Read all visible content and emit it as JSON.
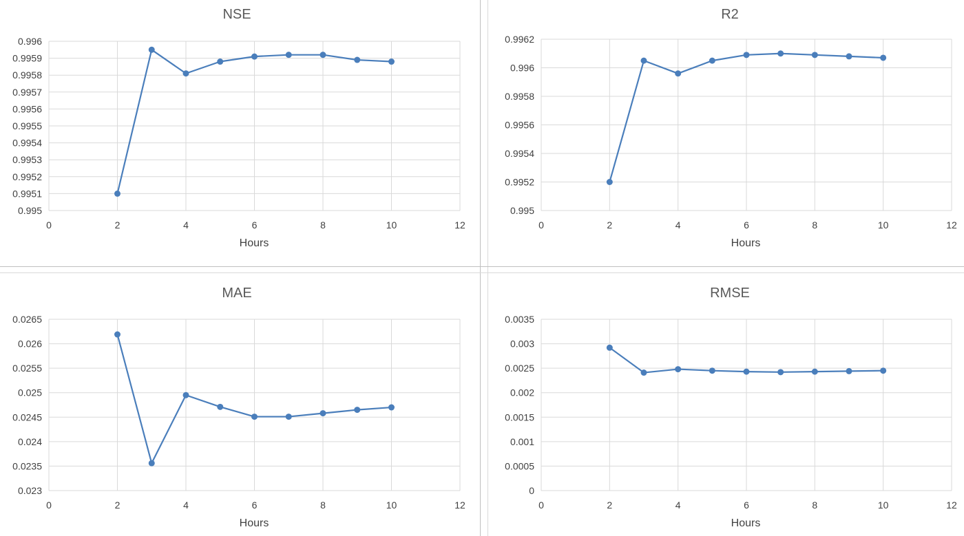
{
  "series_color": "#4a7ebb",
  "grid_color": "#d9d9d9",
  "chart_data": [
    {
      "type": "scatter",
      "title": "NSE",
      "xlabel": "Hours",
      "ylabel": "",
      "xlim": [
        0,
        12
      ],
      "ylim": [
        0.995,
        0.996
      ],
      "xticks": [
        "0",
        "2",
        "4",
        "6",
        "8",
        "10",
        "12"
      ],
      "xtick_values": [
        0,
        2,
        4,
        6,
        8,
        10,
        12
      ],
      "yticks": [
        "0.995",
        "0.9951",
        "0.9952",
        "0.9953",
        "0.9954",
        "0.9955",
        "0.9956",
        "0.9957",
        "0.9958",
        "0.9959",
        "0.996"
      ],
      "ytick_values": [
        0.995,
        0.9951,
        0.9952,
        0.9953,
        0.9954,
        0.9955,
        0.9956,
        0.9957,
        0.9958,
        0.9959,
        0.996
      ],
      "grid": true,
      "series": [
        {
          "x": [
            2,
            3,
            4,
            5,
            6,
            7,
            8,
            9,
            10
          ],
          "y": [
            0.9951,
            0.99595,
            0.99581,
            0.99588,
            0.99591,
            0.99592,
            0.99592,
            0.99589,
            0.99588
          ]
        }
      ]
    },
    {
      "type": "scatter",
      "title": "R2",
      "xlabel": "Hours",
      "ylabel": "",
      "xlim": [
        0,
        12
      ],
      "ylim": [
        0.995,
        0.9962
      ],
      "xticks": [
        "0",
        "2",
        "4",
        "6",
        "8",
        "10",
        "12"
      ],
      "xtick_values": [
        0,
        2,
        4,
        6,
        8,
        10,
        12
      ],
      "yticks": [
        "0.995",
        "0.9952",
        "0.9954",
        "0.9956",
        "0.9958",
        "0.996",
        "0.9962"
      ],
      "ytick_values": [
        0.995,
        0.9952,
        0.9954,
        0.9956,
        0.9958,
        0.996,
        0.9962
      ],
      "grid": true,
      "series": [
        {
          "x": [
            2,
            3,
            4,
            5,
            6,
            7,
            8,
            9,
            10
          ],
          "y": [
            0.9952,
            0.99605,
            0.99596,
            0.99605,
            0.99609,
            0.9961,
            0.99609,
            0.99608,
            0.99607
          ]
        }
      ]
    },
    {
      "type": "scatter",
      "title": "MAE",
      "xlabel": "Hours",
      "ylabel": "",
      "xlim": [
        0,
        12
      ],
      "ylim": [
        0.023,
        0.0265
      ],
      "xticks": [
        "0",
        "2",
        "4",
        "6",
        "8",
        "10",
        "12"
      ],
      "xtick_values": [
        0,
        2,
        4,
        6,
        8,
        10,
        12
      ],
      "yticks": [
        "0.023",
        "0.0235",
        "0.024",
        "0.0245",
        "0.025",
        "0.0255",
        "0.026",
        "0.0265"
      ],
      "ytick_values": [
        0.023,
        0.0235,
        0.024,
        0.0245,
        0.025,
        0.0255,
        0.026,
        0.0265
      ],
      "grid": true,
      "series": [
        {
          "x": [
            2,
            3,
            4,
            5,
            6,
            7,
            8,
            9,
            10
          ],
          "y": [
            0.02619,
            0.02356,
            0.02495,
            0.02471,
            0.02451,
            0.02451,
            0.02458,
            0.02465,
            0.0247
          ]
        }
      ]
    },
    {
      "type": "scatter",
      "title": "RMSE",
      "xlabel": "Hours",
      "ylabel": "",
      "xlim": [
        0,
        12
      ],
      "ylim": [
        0,
        0.0035
      ],
      "xticks": [
        "0",
        "2",
        "4",
        "6",
        "8",
        "10",
        "12"
      ],
      "xtick_values": [
        0,
        2,
        4,
        6,
        8,
        10,
        12
      ],
      "yticks": [
        "0",
        "0.0005",
        "0.001",
        "0.0015",
        "0.002",
        "0.0025",
        "0.003",
        "0.0035"
      ],
      "ytick_values": [
        0,
        0.0005,
        0.001,
        0.0015,
        0.002,
        0.0025,
        0.003,
        0.0035
      ],
      "grid": true,
      "series": [
        {
          "x": [
            2,
            3,
            4,
            5,
            6,
            7,
            8,
            9,
            10
          ],
          "y": [
            0.00292,
            0.00241,
            0.00248,
            0.00245,
            0.00243,
            0.00242,
            0.00243,
            0.00244,
            0.00245
          ]
        }
      ]
    }
  ]
}
